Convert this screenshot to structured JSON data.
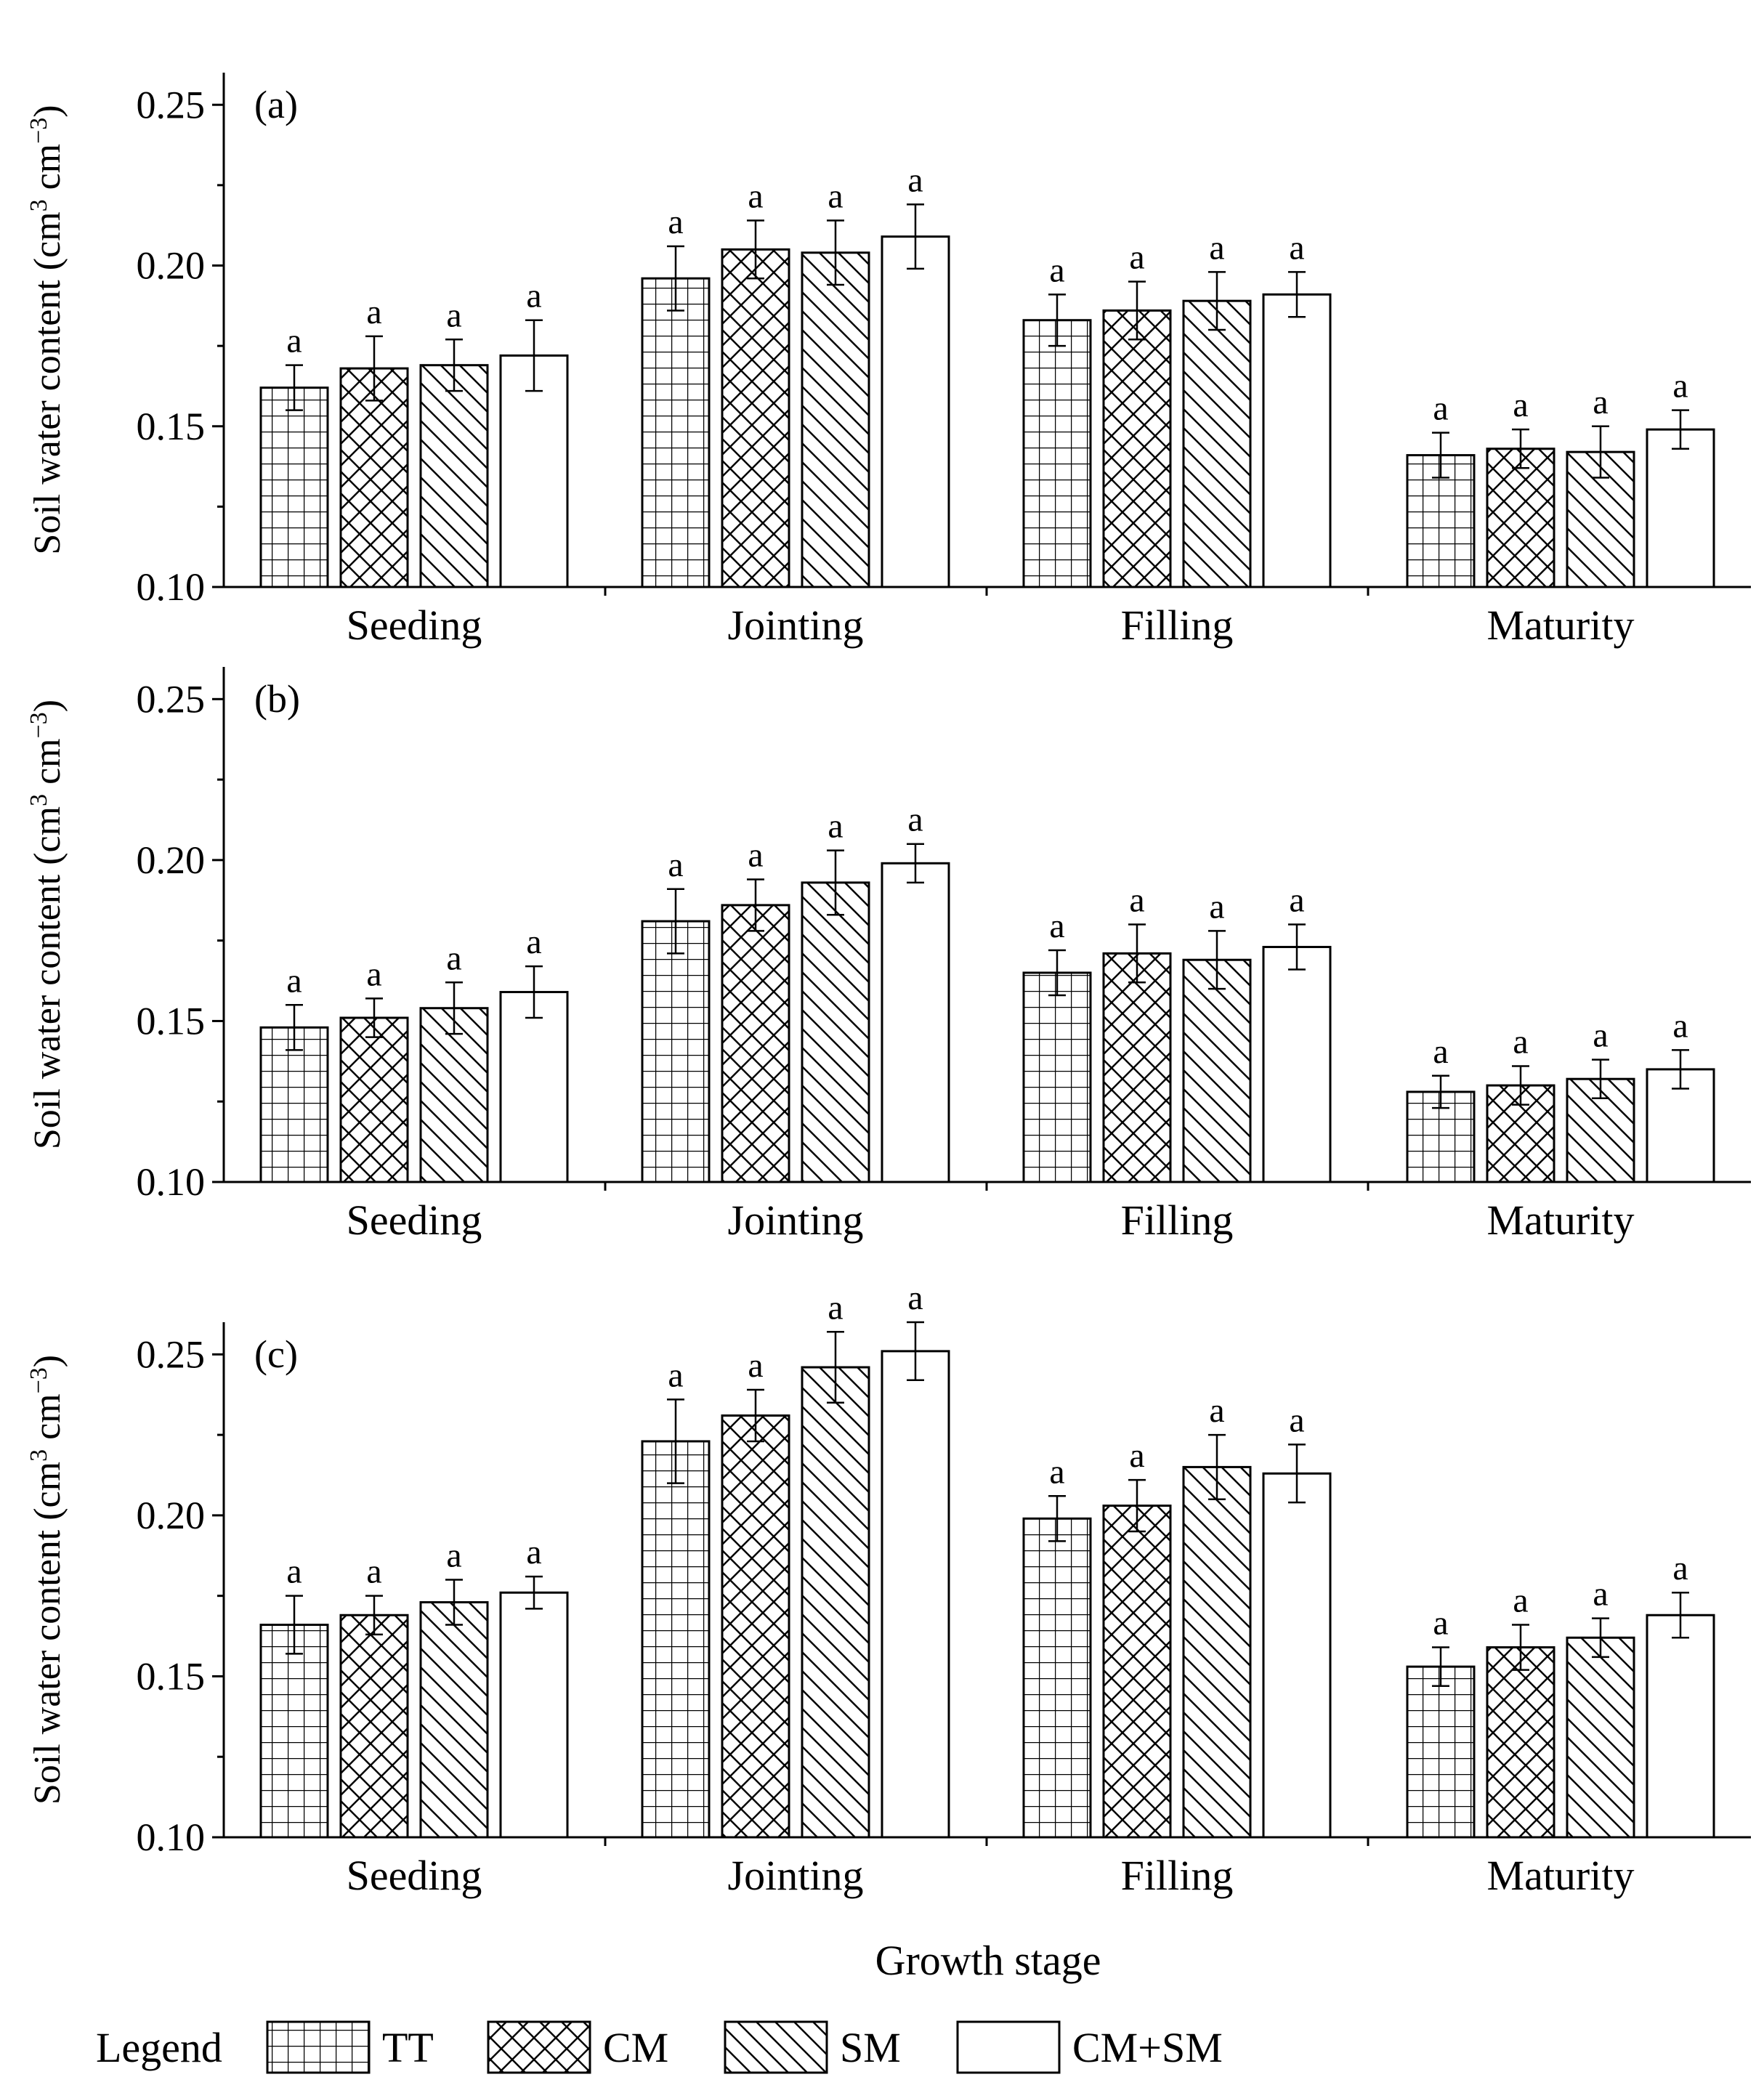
{
  "chart_data": [
    {
      "type": "bar",
      "panel_label": "(a)",
      "categories": [
        "Seeding",
        "Jointing",
        "Filling",
        "Maturity"
      ],
      "series": [
        {
          "name": "TT",
          "values": [
            0.162,
            0.196,
            0.183,
            0.141
          ],
          "errors": [
            0.007,
            0.01,
            0.008,
            0.007
          ]
        },
        {
          "name": "CM",
          "values": [
            0.168,
            0.205,
            0.186,
            0.143
          ],
          "errors": [
            0.01,
            0.009,
            0.009,
            0.006
          ]
        },
        {
          "name": "SM",
          "values": [
            0.169,
            0.204,
            0.189,
            0.142
          ],
          "errors": [
            0.008,
            0.01,
            0.009,
            0.008
          ]
        },
        {
          "name": "CM+SM",
          "values": [
            0.172,
            0.209,
            0.191,
            0.149
          ],
          "errors": [
            0.011,
            0.01,
            0.007,
            0.006
          ]
        }
      ],
      "significance": [
        [
          "a",
          "a",
          "a",
          "a"
        ],
        [
          "a",
          "a",
          "a",
          "a"
        ],
        [
          "a",
          "a",
          "a",
          "a"
        ],
        [
          "a",
          "a",
          "a",
          "a"
        ]
      ],
      "ylabel_main": "Soil water content (cm",
      "ylabel_mid": " cm",
      "ylabel_end": ")",
      "ylabel_sup1": "3",
      "ylabel_sup2": "−3",
      "ylim": [
        0.1,
        0.26
      ],
      "yticks": [
        "0.10",
        "0.15",
        "0.20",
        "0.25"
      ]
    },
    {
      "type": "bar",
      "panel_label": "(b)",
      "categories": [
        "Seeding",
        "Jointing",
        "Filling",
        "Maturity"
      ],
      "series": [
        {
          "name": "TT",
          "values": [
            0.148,
            0.181,
            0.165,
            0.128
          ],
          "errors": [
            0.007,
            0.01,
            0.007,
            0.005
          ]
        },
        {
          "name": "CM",
          "values": [
            0.151,
            0.186,
            0.171,
            0.13
          ],
          "errors": [
            0.006,
            0.008,
            0.009,
            0.006
          ]
        },
        {
          "name": "SM",
          "values": [
            0.154,
            0.193,
            0.169,
            0.132
          ],
          "errors": [
            0.008,
            0.01,
            0.009,
            0.006
          ]
        },
        {
          "name": "CM+SM",
          "values": [
            0.159,
            0.199,
            0.173,
            0.135
          ],
          "errors": [
            0.008,
            0.006,
            0.007,
            0.006
          ]
        }
      ],
      "significance": [
        [
          "a",
          "a",
          "a",
          "a"
        ],
        [
          "a",
          "a",
          "a",
          "a"
        ],
        [
          "a",
          "a",
          "a",
          "a"
        ],
        [
          "a",
          "a",
          "a",
          "a"
        ]
      ],
      "ylabel_main": "Soil water content (cm",
      "ylabel_mid": " cm",
      "ylabel_end": ")",
      "ylabel_sup1": "3",
      "ylabel_sup2": "−3",
      "ylim": [
        0.1,
        0.26
      ],
      "yticks": [
        "0.10",
        "0.15",
        "0.20",
        "0.25"
      ]
    },
    {
      "type": "bar",
      "panel_label": "(c)",
      "categories": [
        "Seeding",
        "Jointing",
        "Filling",
        "Maturity"
      ],
      "series": [
        {
          "name": "TT",
          "values": [
            0.166,
            0.223,
            0.199,
            0.153
          ],
          "errors": [
            0.009,
            0.013,
            0.007,
            0.006
          ]
        },
        {
          "name": "CM",
          "values": [
            0.169,
            0.231,
            0.203,
            0.159
          ],
          "errors": [
            0.006,
            0.008,
            0.008,
            0.007
          ]
        },
        {
          "name": "SM",
          "values": [
            0.173,
            0.246,
            0.215,
            0.162
          ],
          "errors": [
            0.007,
            0.011,
            0.01,
            0.006
          ]
        },
        {
          "name": "CM+SM",
          "values": [
            0.176,
            0.251,
            0.213,
            0.169
          ],
          "errors": [
            0.005,
            0.009,
            0.009,
            0.007
          ]
        }
      ],
      "significance": [
        [
          "a",
          "a",
          "a",
          "a"
        ],
        [
          "a",
          "a",
          "a",
          "a"
        ],
        [
          "a",
          "a",
          "a",
          "a"
        ],
        [
          "a",
          "a",
          "a",
          "a"
        ]
      ],
      "ylabel_main": "Soil water content (cm",
      "ylabel_mid": " cm",
      "ylabel_end": ")",
      "ylabel_sup1": "3",
      "ylabel_sup2": "−3",
      "ylim": [
        0.1,
        0.26
      ],
      "yticks": [
        "0.10",
        "0.15",
        "0.20",
        "0.25"
      ]
    }
  ],
  "xlabel": "Growth stage",
  "legend": {
    "title": "Legend",
    "items": [
      {
        "name": "TT",
        "pattern": "grid"
      },
      {
        "name": "CM",
        "pattern": "crosshatch"
      },
      {
        "name": "SM",
        "pattern": "diagonal"
      },
      {
        "name": "CM+SM",
        "pattern": "none"
      }
    ]
  },
  "colors": {
    "ink": "#000000",
    "fill": "#ffffff"
  }
}
